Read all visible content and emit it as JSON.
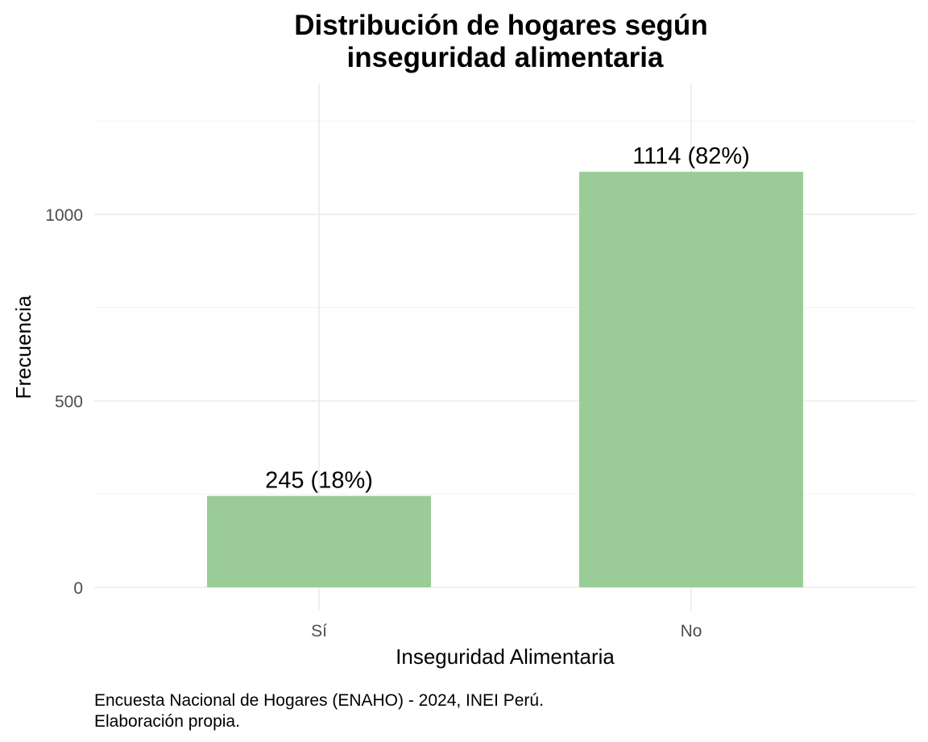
{
  "chart_data": {
    "type": "bar",
    "title": [
      "Distribución de hogares según",
      "inseguridad alimentaria"
    ],
    "xlabel": "Inseguridad Alimentaria",
    "ylabel": "Frecuencia",
    "categories": [
      "Sí",
      "No"
    ],
    "values": [
      245,
      1114
    ],
    "data_labels": [
      "245 (18%)",
      "1114 (82%)"
    ],
    "yticks": [
      0,
      500,
      1000
    ],
    "ylim": [
      0,
      1250
    ],
    "bar_color": "#9bcc98",
    "grid": true,
    "legend": "none",
    "caption": [
      "Encuesta Nacional de Hogares (ENAHO) - 2024, INEI Perú.",
      "Elaboración propia."
    ]
  }
}
